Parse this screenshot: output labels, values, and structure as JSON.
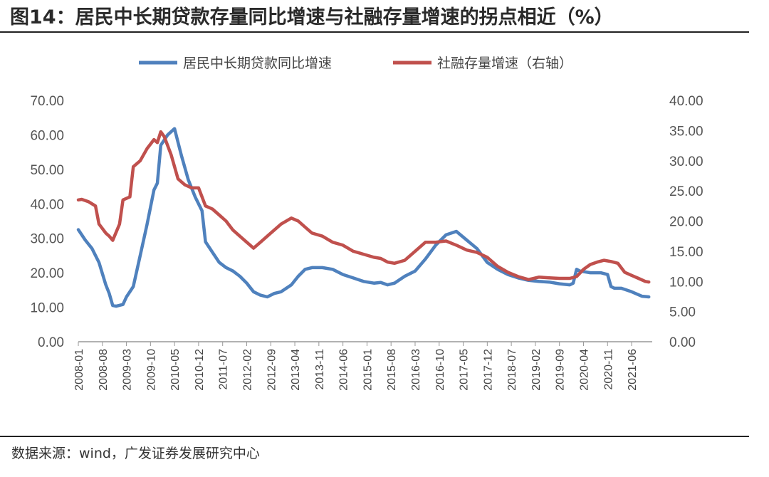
{
  "header": {
    "title": "图14：居民中长期贷款存量同比增速与社融存量增速的拐点相近（%）"
  },
  "footer": {
    "source": "数据来源：wind，广发证券发展研究中心"
  },
  "chart_data": {
    "type": "line",
    "legend_position": "top",
    "grid": false,
    "y_left": {
      "min": 0,
      "max": 70,
      "step": 10,
      "tick_labels": [
        "0.00",
        "10.00",
        "20.00",
        "30.00",
        "40.00",
        "50.00",
        "60.00",
        "70.00"
      ]
    },
    "y_right": {
      "min": 0,
      "max": 40,
      "step": 5,
      "tick_labels": [
        "0.00",
        "5.00",
        "10.00",
        "15.00",
        "20.00",
        "25.00",
        "30.00",
        "35.00",
        "40.00"
      ]
    },
    "x_tick_labels": [
      "2008-01",
      "2008-08",
      "2009-03",
      "2009-10",
      "2010-05",
      "2010-12",
      "2011-07",
      "2012-02",
      "2012-09",
      "2013-04",
      "2013-11",
      "2014-06",
      "2015-01",
      "2015-08",
      "2016-03",
      "2016-10",
      "2017-05",
      "2017-12",
      "2018-07",
      "2019-02",
      "2019-09",
      "2020-04",
      "2020-11",
      "2021-06"
    ],
    "x_start": "2008-01",
    "x_end": "2021-12",
    "series": [
      {
        "name": "居民中长期贷款同比增速",
        "axis": "left",
        "color": "#4f81bd",
        "points": [
          [
            "2008-01",
            32.5
          ],
          [
            "2008-03",
            29.5
          ],
          [
            "2008-05",
            27.0
          ],
          [
            "2008-07",
            23.0
          ],
          [
            "2008-09",
            16.5
          ],
          [
            "2008-10",
            14.0
          ],
          [
            "2008-11",
            10.5
          ],
          [
            "2008-12",
            10.3
          ],
          [
            "2009-02",
            10.8
          ],
          [
            "2009-03",
            13.0
          ],
          [
            "2009-05",
            16.0
          ],
          [
            "2009-07",
            25.0
          ],
          [
            "2009-09",
            34.0
          ],
          [
            "2009-11",
            44.0
          ],
          [
            "2009-12",
            46.0
          ],
          [
            "2010-01",
            57.0
          ],
          [
            "2010-03",
            60.0
          ],
          [
            "2010-05",
            61.8
          ],
          [
            "2010-07",
            54.0
          ],
          [
            "2010-09",
            47.0
          ],
          [
            "2010-11",
            42.0
          ],
          [
            "2011-01",
            38.0
          ],
          [
            "2011-02",
            29.0
          ],
          [
            "2011-04",
            26.0
          ],
          [
            "2011-06",
            23.0
          ],
          [
            "2011-08",
            21.5
          ],
          [
            "2011-10",
            20.5
          ],
          [
            "2011-12",
            19.0
          ],
          [
            "2012-02",
            17.0
          ],
          [
            "2012-04",
            14.5
          ],
          [
            "2012-06",
            13.5
          ],
          [
            "2012-08",
            13.0
          ],
          [
            "2012-10",
            14.0
          ],
          [
            "2012-12",
            14.5
          ],
          [
            "2013-03",
            16.5
          ],
          [
            "2013-05",
            19.0
          ],
          [
            "2013-07",
            21.0
          ],
          [
            "2013-09",
            21.5
          ],
          [
            "2013-12",
            21.5
          ],
          [
            "2014-03",
            21.0
          ],
          [
            "2014-06",
            19.5
          ],
          [
            "2014-09",
            18.5
          ],
          [
            "2014-12",
            17.5
          ],
          [
            "2015-03",
            17.0
          ],
          [
            "2015-05",
            17.2
          ],
          [
            "2015-07",
            16.5
          ],
          [
            "2015-09",
            17.0
          ],
          [
            "2015-12",
            19.0
          ],
          [
            "2016-03",
            20.5
          ],
          [
            "2016-06",
            24.0
          ],
          [
            "2016-09",
            28.0
          ],
          [
            "2016-12",
            31.0
          ],
          [
            "2017-03",
            32.0
          ],
          [
            "2017-06",
            29.5
          ],
          [
            "2017-09",
            27.0
          ],
          [
            "2017-12",
            23.0
          ],
          [
            "2018-03",
            21.0
          ],
          [
            "2018-06",
            19.5
          ],
          [
            "2018-09",
            18.5
          ],
          [
            "2018-12",
            17.8
          ],
          [
            "2019-03",
            17.5
          ],
          [
            "2019-06",
            17.3
          ],
          [
            "2019-09",
            16.8
          ],
          [
            "2019-12",
            16.5
          ],
          [
            "2020-01",
            17.0
          ],
          [
            "2020-02",
            21.0
          ],
          [
            "2020-03",
            20.5
          ],
          [
            "2020-06",
            20.0
          ],
          [
            "2020-09",
            20.0
          ],
          [
            "2020-11",
            19.5
          ],
          [
            "2020-12",
            16.0
          ],
          [
            "2021-01",
            15.5
          ],
          [
            "2021-03",
            15.5
          ],
          [
            "2021-06",
            14.5
          ],
          [
            "2021-09",
            13.2
          ],
          [
            "2021-11",
            13.0
          ]
        ]
      },
      {
        "name": "社融存量增速（右轴）",
        "axis": "right",
        "color": "#c0504d",
        "points": [
          [
            "2008-01",
            23.5
          ],
          [
            "2008-02",
            23.6
          ],
          [
            "2008-04",
            23.2
          ],
          [
            "2008-06",
            22.5
          ],
          [
            "2008-07",
            19.5
          ],
          [
            "2008-09",
            18.0
          ],
          [
            "2008-10",
            17.5
          ],
          [
            "2008-11",
            16.8
          ],
          [
            "2009-01",
            19.5
          ],
          [
            "2009-02",
            23.5
          ],
          [
            "2009-04",
            24.0
          ],
          [
            "2009-05",
            29.0
          ],
          [
            "2009-07",
            30.0
          ],
          [
            "2009-09",
            32.0
          ],
          [
            "2009-11",
            33.5
          ],
          [
            "2009-12",
            33.0
          ],
          [
            "2010-01",
            34.8
          ],
          [
            "2010-02",
            34.0
          ],
          [
            "2010-04",
            31.0
          ],
          [
            "2010-06",
            27.0
          ],
          [
            "2010-08",
            26.0
          ],
          [
            "2010-10",
            25.5
          ],
          [
            "2010-12",
            25.5
          ],
          [
            "2011-02",
            22.5
          ],
          [
            "2011-04",
            22.0
          ],
          [
            "2011-06",
            21.0
          ],
          [
            "2011-08",
            20.0
          ],
          [
            "2011-10",
            18.5
          ],
          [
            "2011-12",
            17.5
          ],
          [
            "2012-02",
            16.5
          ],
          [
            "2012-04",
            15.5
          ],
          [
            "2012-06",
            16.5
          ],
          [
            "2012-08",
            17.5
          ],
          [
            "2012-10",
            18.5
          ],
          [
            "2012-12",
            19.5
          ],
          [
            "2013-03",
            20.5
          ],
          [
            "2013-05",
            20.0
          ],
          [
            "2013-07",
            19.0
          ],
          [
            "2013-09",
            18.0
          ],
          [
            "2013-12",
            17.5
          ],
          [
            "2014-03",
            16.5
          ],
          [
            "2014-06",
            16.0
          ],
          [
            "2014-09",
            15.0
          ],
          [
            "2014-12",
            14.5
          ],
          [
            "2015-03",
            14.0
          ],
          [
            "2015-05",
            13.8
          ],
          [
            "2015-07",
            13.2
          ],
          [
            "2015-09",
            13.0
          ],
          [
            "2015-12",
            13.5
          ],
          [
            "2016-03",
            15.0
          ],
          [
            "2016-06",
            16.5
          ],
          [
            "2016-09",
            16.5
          ],
          [
            "2016-12",
            16.7
          ],
          [
            "2017-03",
            16.0
          ],
          [
            "2017-06",
            15.2
          ],
          [
            "2017-09",
            14.8
          ],
          [
            "2017-12",
            14.0
          ],
          [
            "2018-03",
            12.5
          ],
          [
            "2018-06",
            11.5
          ],
          [
            "2018-09",
            10.8
          ],
          [
            "2018-12",
            10.3
          ],
          [
            "2019-03",
            10.7
          ],
          [
            "2019-06",
            10.6
          ],
          [
            "2019-09",
            10.5
          ],
          [
            "2019-12",
            10.5
          ],
          [
            "2020-02",
            10.8
          ],
          [
            "2020-04",
            12.0
          ],
          [
            "2020-06",
            12.8
          ],
          [
            "2020-08",
            13.2
          ],
          [
            "2020-10",
            13.5
          ],
          [
            "2020-12",
            13.3
          ],
          [
            "2021-02",
            13.0
          ],
          [
            "2021-04",
            11.5
          ],
          [
            "2021-06",
            11.0
          ],
          [
            "2021-08",
            10.5
          ],
          [
            "2021-10",
            10.0
          ],
          [
            "2021-11",
            9.9
          ]
        ]
      }
    ]
  }
}
